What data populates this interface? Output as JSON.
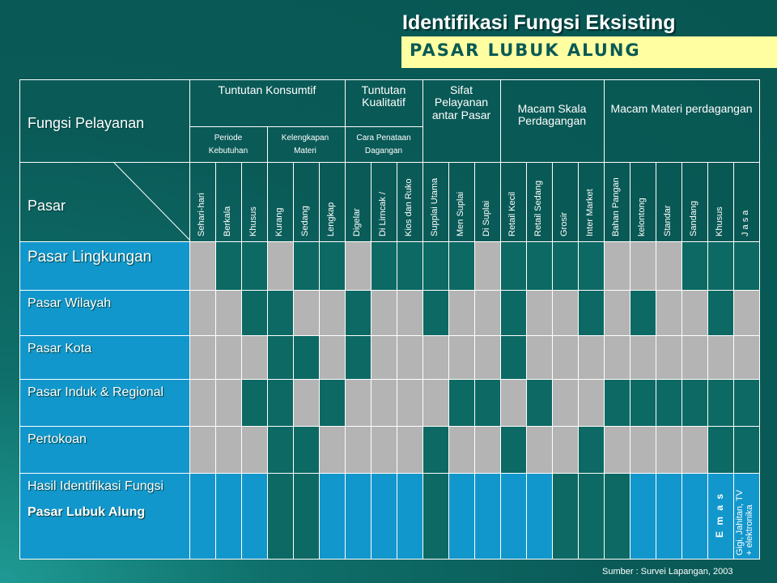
{
  "header": {
    "title": "Identifikasi Fungsi Eksisting",
    "subtitle": "PASAR LUBUK ALUNG"
  },
  "table": {
    "corner_top": "Fungsi Pelayanan",
    "corner_bottom": "Pasar",
    "groups": [
      {
        "label": "Tuntutan Konsumtif",
        "sub": [
          {
            "label": "Periode Kebutuhan"
          },
          {
            "label": "Kelengkapan Materi"
          }
        ]
      },
      {
        "label": "Tuntutan Kualitatif",
        "sub": [
          {
            "label": "Cara Penataan Dagangan"
          }
        ]
      },
      {
        "label": "Sifat Pelayanan antar Pasar"
      },
      {
        "label": "Macam Skala Perdagangan"
      },
      {
        "label": "Macam Materi perdagangan"
      }
    ],
    "columns": [
      "Sehari-hari",
      "Berkala",
      "Khusus",
      "Kurang",
      "Sedang",
      "Lengkap",
      "Digelar",
      "Di Lirncak /",
      "Kios dan Ruko",
      "Supplai Utama",
      "Men Suplai",
      "Di Suplai",
      "Retail Kecil",
      "Retail Sedang",
      "Grosir",
      "Inter Market",
      "Bahan Pangan",
      "kelontong",
      "Standar",
      "Sandang",
      "Khusus",
      "J a s a"
    ],
    "rows": [
      {
        "label": "Pasar Lingkungan",
        "marks": [
          1,
          0,
          0,
          1,
          0,
          0,
          1,
          0,
          0,
          0,
          0,
          1,
          0,
          0,
          0,
          0,
          1,
          1,
          1,
          0,
          0,
          0
        ]
      },
      {
        "label": "Pasar Wilayah",
        "marks": [
          1,
          1,
          0,
          0,
          1,
          1,
          0,
          1,
          1,
          0,
          1,
          1,
          0,
          1,
          1,
          0,
          1,
          0,
          1,
          1,
          0,
          1
        ]
      },
      {
        "label": "Pasar Kota",
        "marks": [
          1,
          1,
          1,
          0,
          0,
          1,
          0,
          1,
          1,
          1,
          1,
          1,
          0,
          1,
          1,
          1,
          1,
          1,
          1,
          1,
          1,
          1
        ]
      },
      {
        "label": "Pasar Induk & Regional",
        "marks": [
          1,
          1,
          0,
          0,
          1,
          0,
          1,
          1,
          1,
          1,
          0,
          0,
          1,
          0,
          1,
          1,
          0,
          0,
          0,
          0,
          0,
          0
        ]
      },
      {
        "label": "Pertokoan",
        "marks": [
          1,
          1,
          1,
          0,
          0,
          1,
          1,
          1,
          1,
          0,
          1,
          1,
          0,
          1,
          1,
          0,
          1,
          1,
          1,
          1,
          0,
          0
        ]
      }
    ],
    "result": {
      "label_line1": "Hasil Identifikasi Fungsi",
      "label_line2": "Pasar Lubuk Alung",
      "marks": [
        1,
        1,
        1,
        0,
        0,
        1,
        1,
        1,
        1,
        0,
        1,
        1,
        1,
        1,
        0,
        0,
        0,
        1,
        1,
        1,
        1,
        1
      ],
      "emas_text": "E m a s",
      "jasa_line1": "Gigi, Jahitan, TV",
      "jasa_line2": "+ elektronika"
    },
    "source": "Sumber : Survei Lapangan, 2003"
  },
  "colors": {
    "teal": "#0d6964",
    "blue": "#1297cc",
    "grey": "#b4b4b4",
    "subtitle_band": "#ffffa2"
  }
}
